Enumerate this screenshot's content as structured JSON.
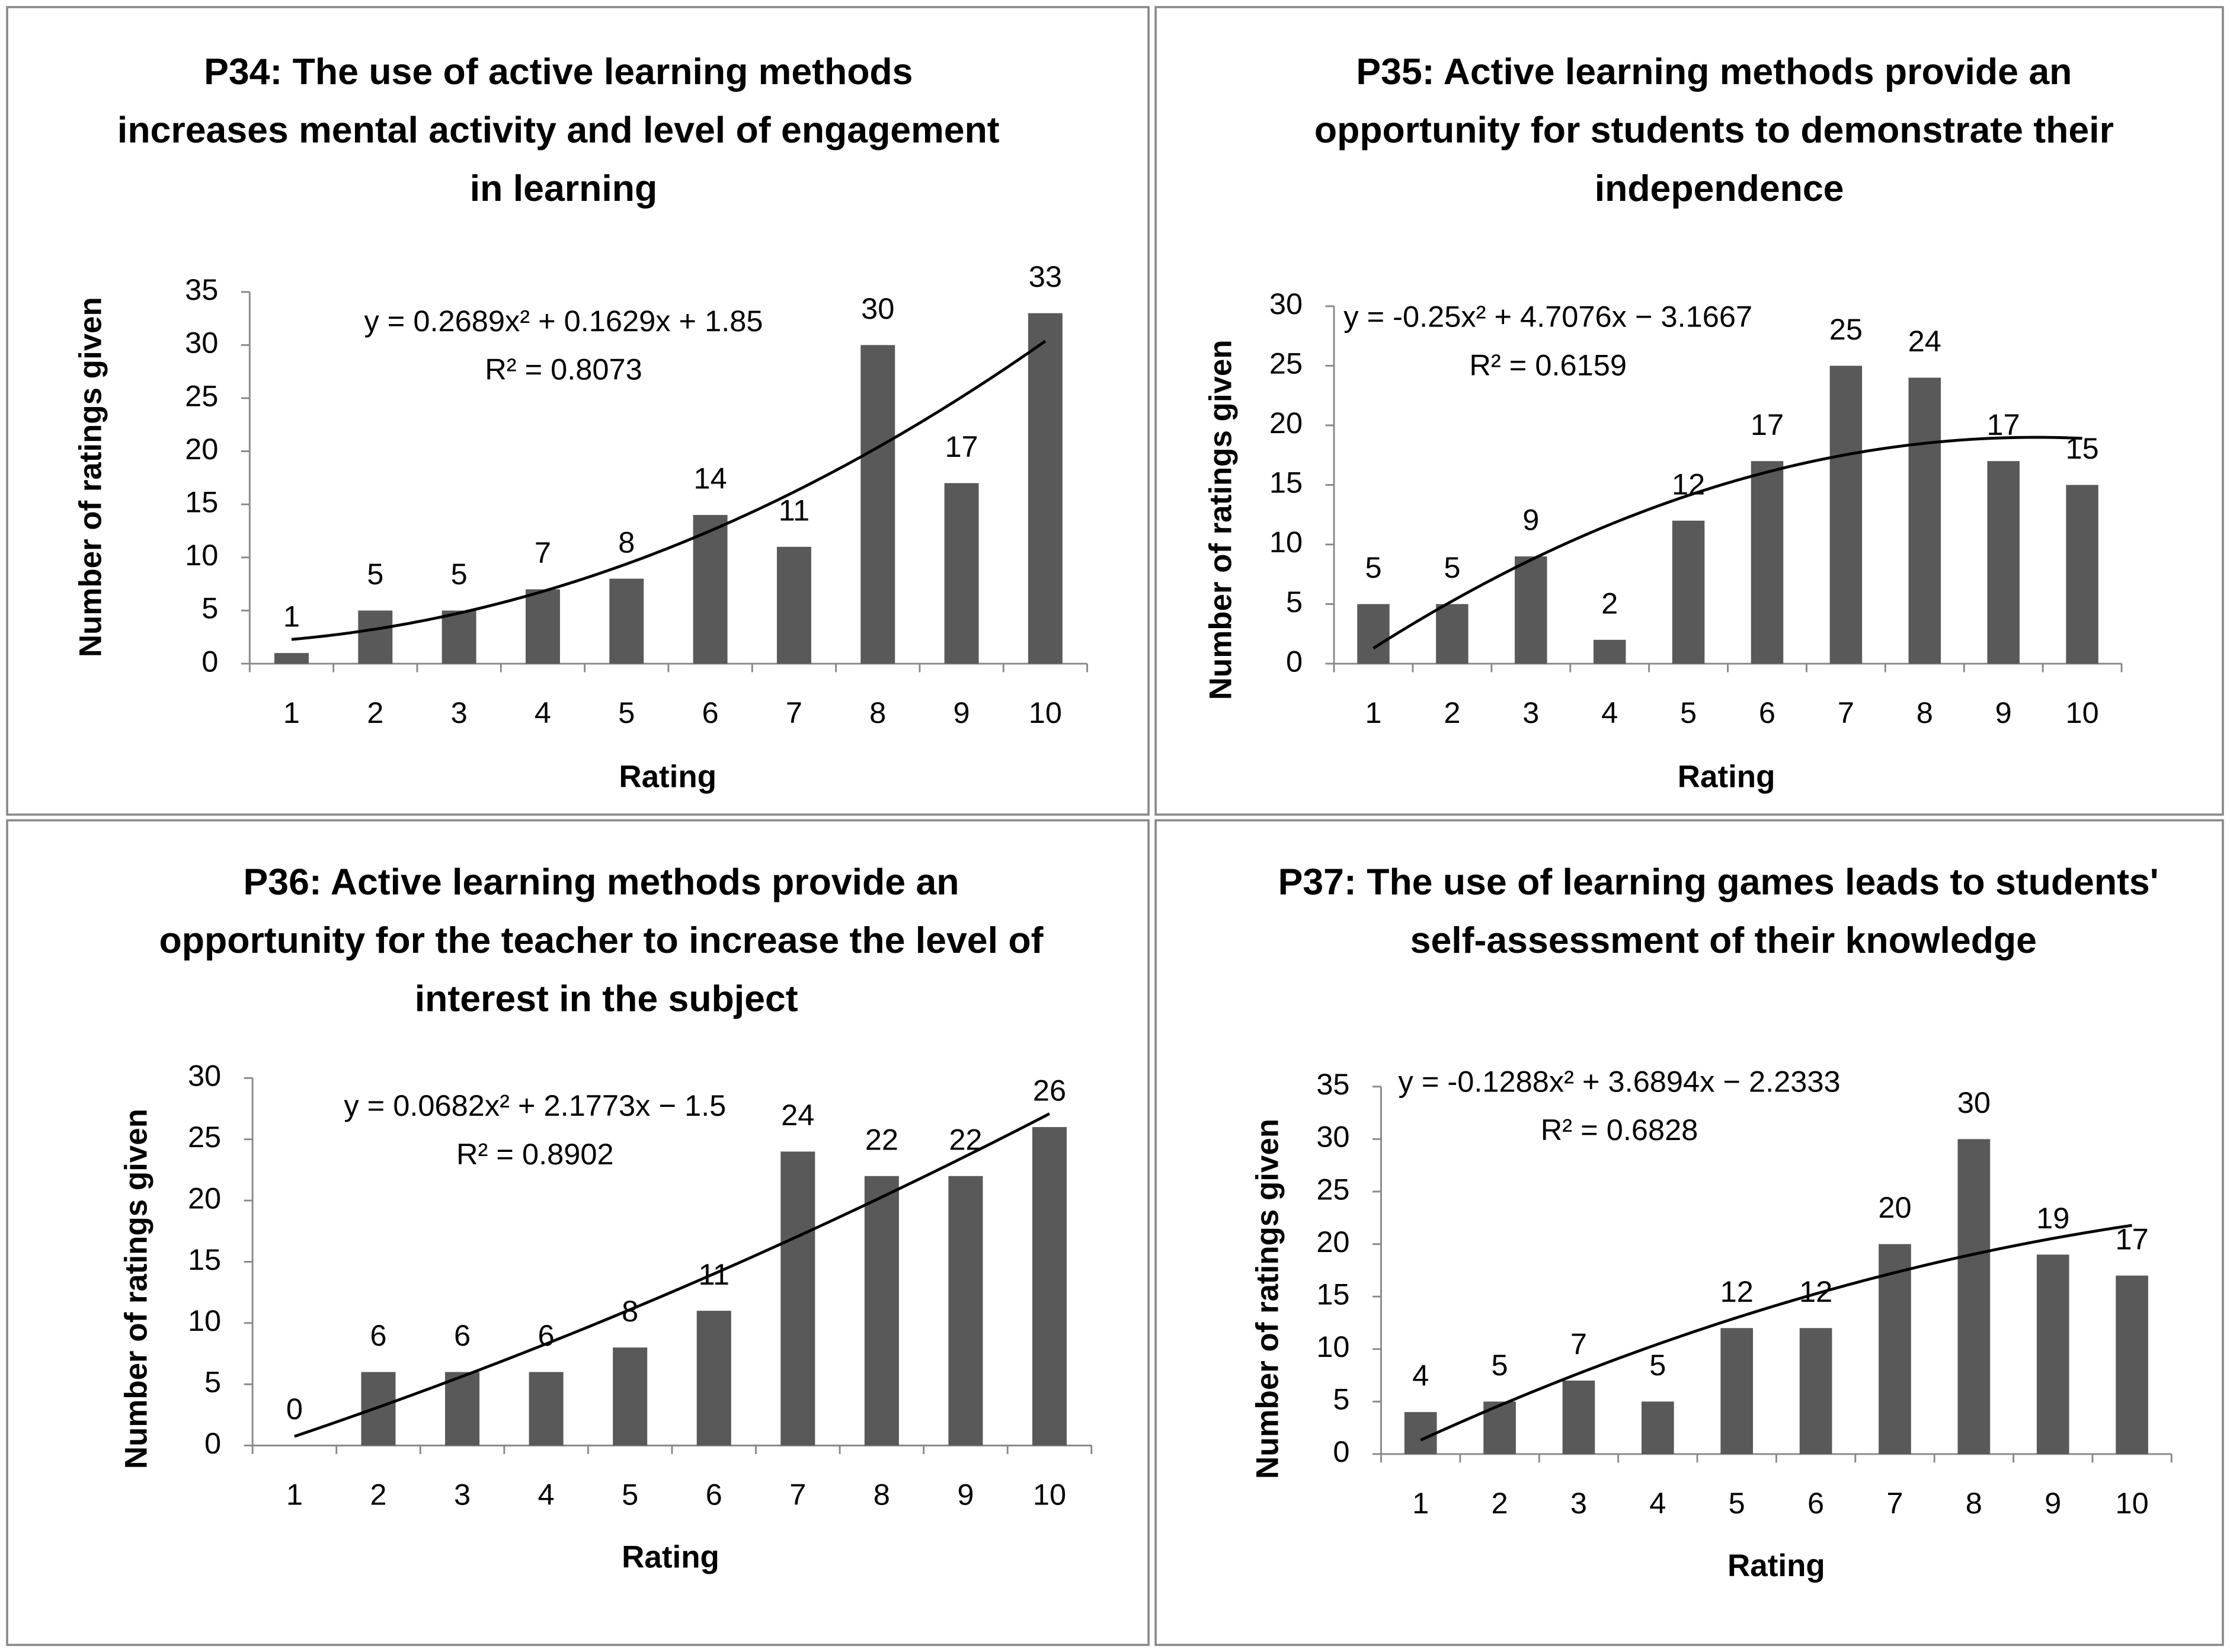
{
  "chart_data": [
    {
      "type": "bar",
      "title": "P34: The use of active learning methods increases mental activity and level of engagement in learning",
      "trendline_equation": "y = 0.2689x² + 0.1629x + 1.85",
      "r_squared": "R² = 0.8073",
      "x_label": "Rating",
      "y_label": "Number of ratings given",
      "categories": [
        1,
        2,
        3,
        4,
        5,
        6,
        7,
        8,
        9,
        10
      ],
      "values": [
        1,
        5,
        5,
        7,
        8,
        14,
        11,
        30,
        17,
        33
      ],
      "color": "#595959",
      "ylim": [
        0,
        35
      ],
      "yticks": [
        0,
        5,
        10,
        15,
        20,
        25,
        30,
        35
      ]
    },
    {
      "type": "bar",
      "title": "P35: Active learning methods provide an opportunity for students to demonstrate their independence",
      "trendline_equation": "y = -0.25x² + 4.7076x − 3.1667",
      "r_squared": "R² = 0.6159",
      "x_label": "Rating",
      "y_label": "Number of ratings given",
      "categories": [
        1,
        2,
        3,
        4,
        5,
        6,
        7,
        8,
        9,
        10
      ],
      "values": [
        5,
        5,
        9,
        2,
        12,
        17,
        25,
        24,
        17,
        15
      ],
      "color": "#595959",
      "ylim": [
        0,
        30
      ],
      "yticks": [
        0,
        5,
        10,
        15,
        20,
        25,
        30
      ]
    },
    {
      "type": "bar",
      "title": "P36: Active learning methods provide an opportunity for the teacher to increase the level of interest in the subject",
      "trendline_equation": "y = 0.0682x² + 2.1773x − 1.5",
      "r_squared": "R² = 0.8902",
      "x_label": "Rating",
      "y_label": "Number of ratings given",
      "categories": [
        1,
        2,
        3,
        4,
        5,
        6,
        7,
        8,
        9,
        10
      ],
      "values": [
        0,
        6,
        6,
        6,
        8,
        11,
        24,
        22,
        22,
        26
      ],
      "color": "#595959",
      "ylim": [
        0,
        30
      ],
      "yticks": [
        0,
        5,
        10,
        15,
        20,
        25,
        30
      ]
    },
    {
      "type": "bar",
      "title": "P37: The use of learning games leads to students' self-assessment of their knowledge",
      "trendline_equation": "y = -0.1288x² + 3.6894x − 2.2333",
      "r_squared": "R² = 0.6828",
      "x_label": "Rating",
      "y_label": "Number of ratings given",
      "categories": [
        1,
        2,
        3,
        4,
        5,
        6,
        7,
        8,
        9,
        10
      ],
      "values": [
        4,
        5,
        7,
        5,
        12,
        12,
        20,
        30,
        19,
        17
      ],
      "color": "#595959",
      "ylim": [
        0,
        35
      ],
      "yticks": [
        0,
        5,
        10,
        15,
        20,
        25,
        30,
        35
      ]
    }
  ]
}
